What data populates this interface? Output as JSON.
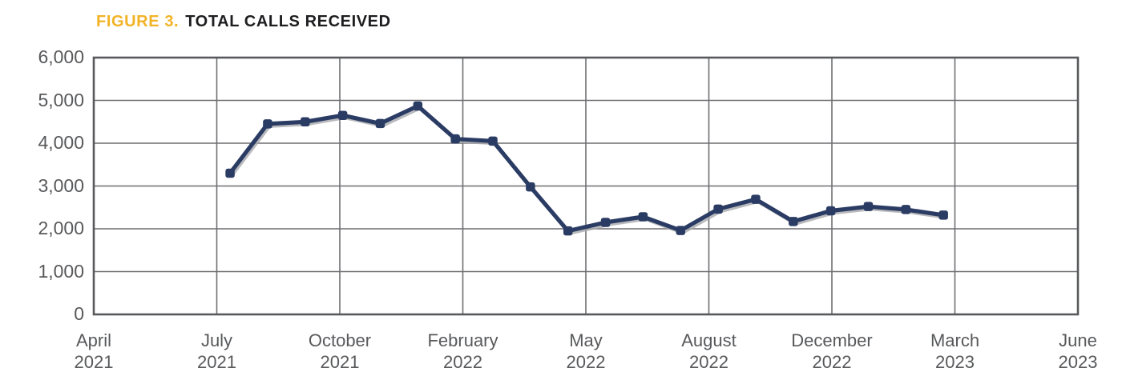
{
  "title": {
    "figure_label": "FIGURE 3.",
    "text": "TOTAL CALLS RECEIVED"
  },
  "colors": {
    "accent_yellow": "#F2B327",
    "title_black": "#1E1E20",
    "line_navy": "#2B3C64",
    "line_shadow": "#A7A9AC",
    "label_gray": "#58595B",
    "grid_gray": "#6E6F72",
    "border_gray": "#58595B"
  },
  "chart_data": {
    "type": "line",
    "title": "FIGURE 3. TOTAL CALLS RECEIVED",
    "xlabel": "",
    "ylabel": "",
    "ylim": [
      0,
      6000
    ],
    "y_tick_step": 1000,
    "grid": true,
    "legend": "none",
    "y_ticks": [
      {
        "value": 6000,
        "label": "6,000"
      },
      {
        "value": 5000,
        "label": "5,000"
      },
      {
        "value": 4000,
        "label": "4,000"
      },
      {
        "value": 3000,
        "label": "3,000"
      },
      {
        "value": 2000,
        "label": "2,000"
      },
      {
        "value": 1000,
        "label": "1,000"
      },
      {
        "value": 0,
        "label": "0"
      }
    ],
    "x_ticks": [
      {
        "month": "April",
        "year": "2021"
      },
      {
        "month": "July",
        "year": "2021"
      },
      {
        "month": "October",
        "year": "2021"
      },
      {
        "month": "February",
        "year": "2022"
      },
      {
        "month": "May",
        "year": "2022"
      },
      {
        "month": "August",
        "year": "2022"
      },
      {
        "month": "December",
        "year": "2022"
      },
      {
        "month": "March",
        "year": "2023"
      },
      {
        "month": "June",
        "year": "2023"
      }
    ],
    "series": [
      {
        "name": "Total calls received",
        "points": [
          {
            "month": "Jul 2021",
            "value": 3300
          },
          {
            "month": "Aug 2021",
            "value": 4450
          },
          {
            "month": "Sep 2021",
            "value": 4500
          },
          {
            "month": "Oct 2021",
            "value": 4650
          },
          {
            "month": "Nov 2021",
            "value": 4460
          },
          {
            "month": "Dec 2021",
            "value": 4870
          },
          {
            "month": "Jan 2022",
            "value": 4100
          },
          {
            "month": "Feb 2022",
            "value": 4050
          },
          {
            "month": "Mar 2022",
            "value": 2980
          },
          {
            "month": "Apr 2022",
            "value": 1950
          },
          {
            "month": "May 2022",
            "value": 2150
          },
          {
            "month": "Jun 2022",
            "value": 2280
          },
          {
            "month": "Jul 2022",
            "value": 1960
          },
          {
            "month": "Aug 2022",
            "value": 2460
          },
          {
            "month": "Sep 2022",
            "value": 2690
          },
          {
            "month": "Oct 2022",
            "value": 2170
          },
          {
            "month": "Nov 2022",
            "value": 2420
          },
          {
            "month": "Dec 2022",
            "value": 2520
          },
          {
            "month": "Jan 2023",
            "value": 2450
          },
          {
            "month": "Feb 2023",
            "value": 2320
          }
        ]
      }
    ],
    "layout": {
      "x_gridline_count": 9,
      "first_point_frac": 0.1385,
      "point_step_frac": 0.03815,
      "axis_span": [
        "April 2021",
        "June 2023"
      ]
    }
  }
}
